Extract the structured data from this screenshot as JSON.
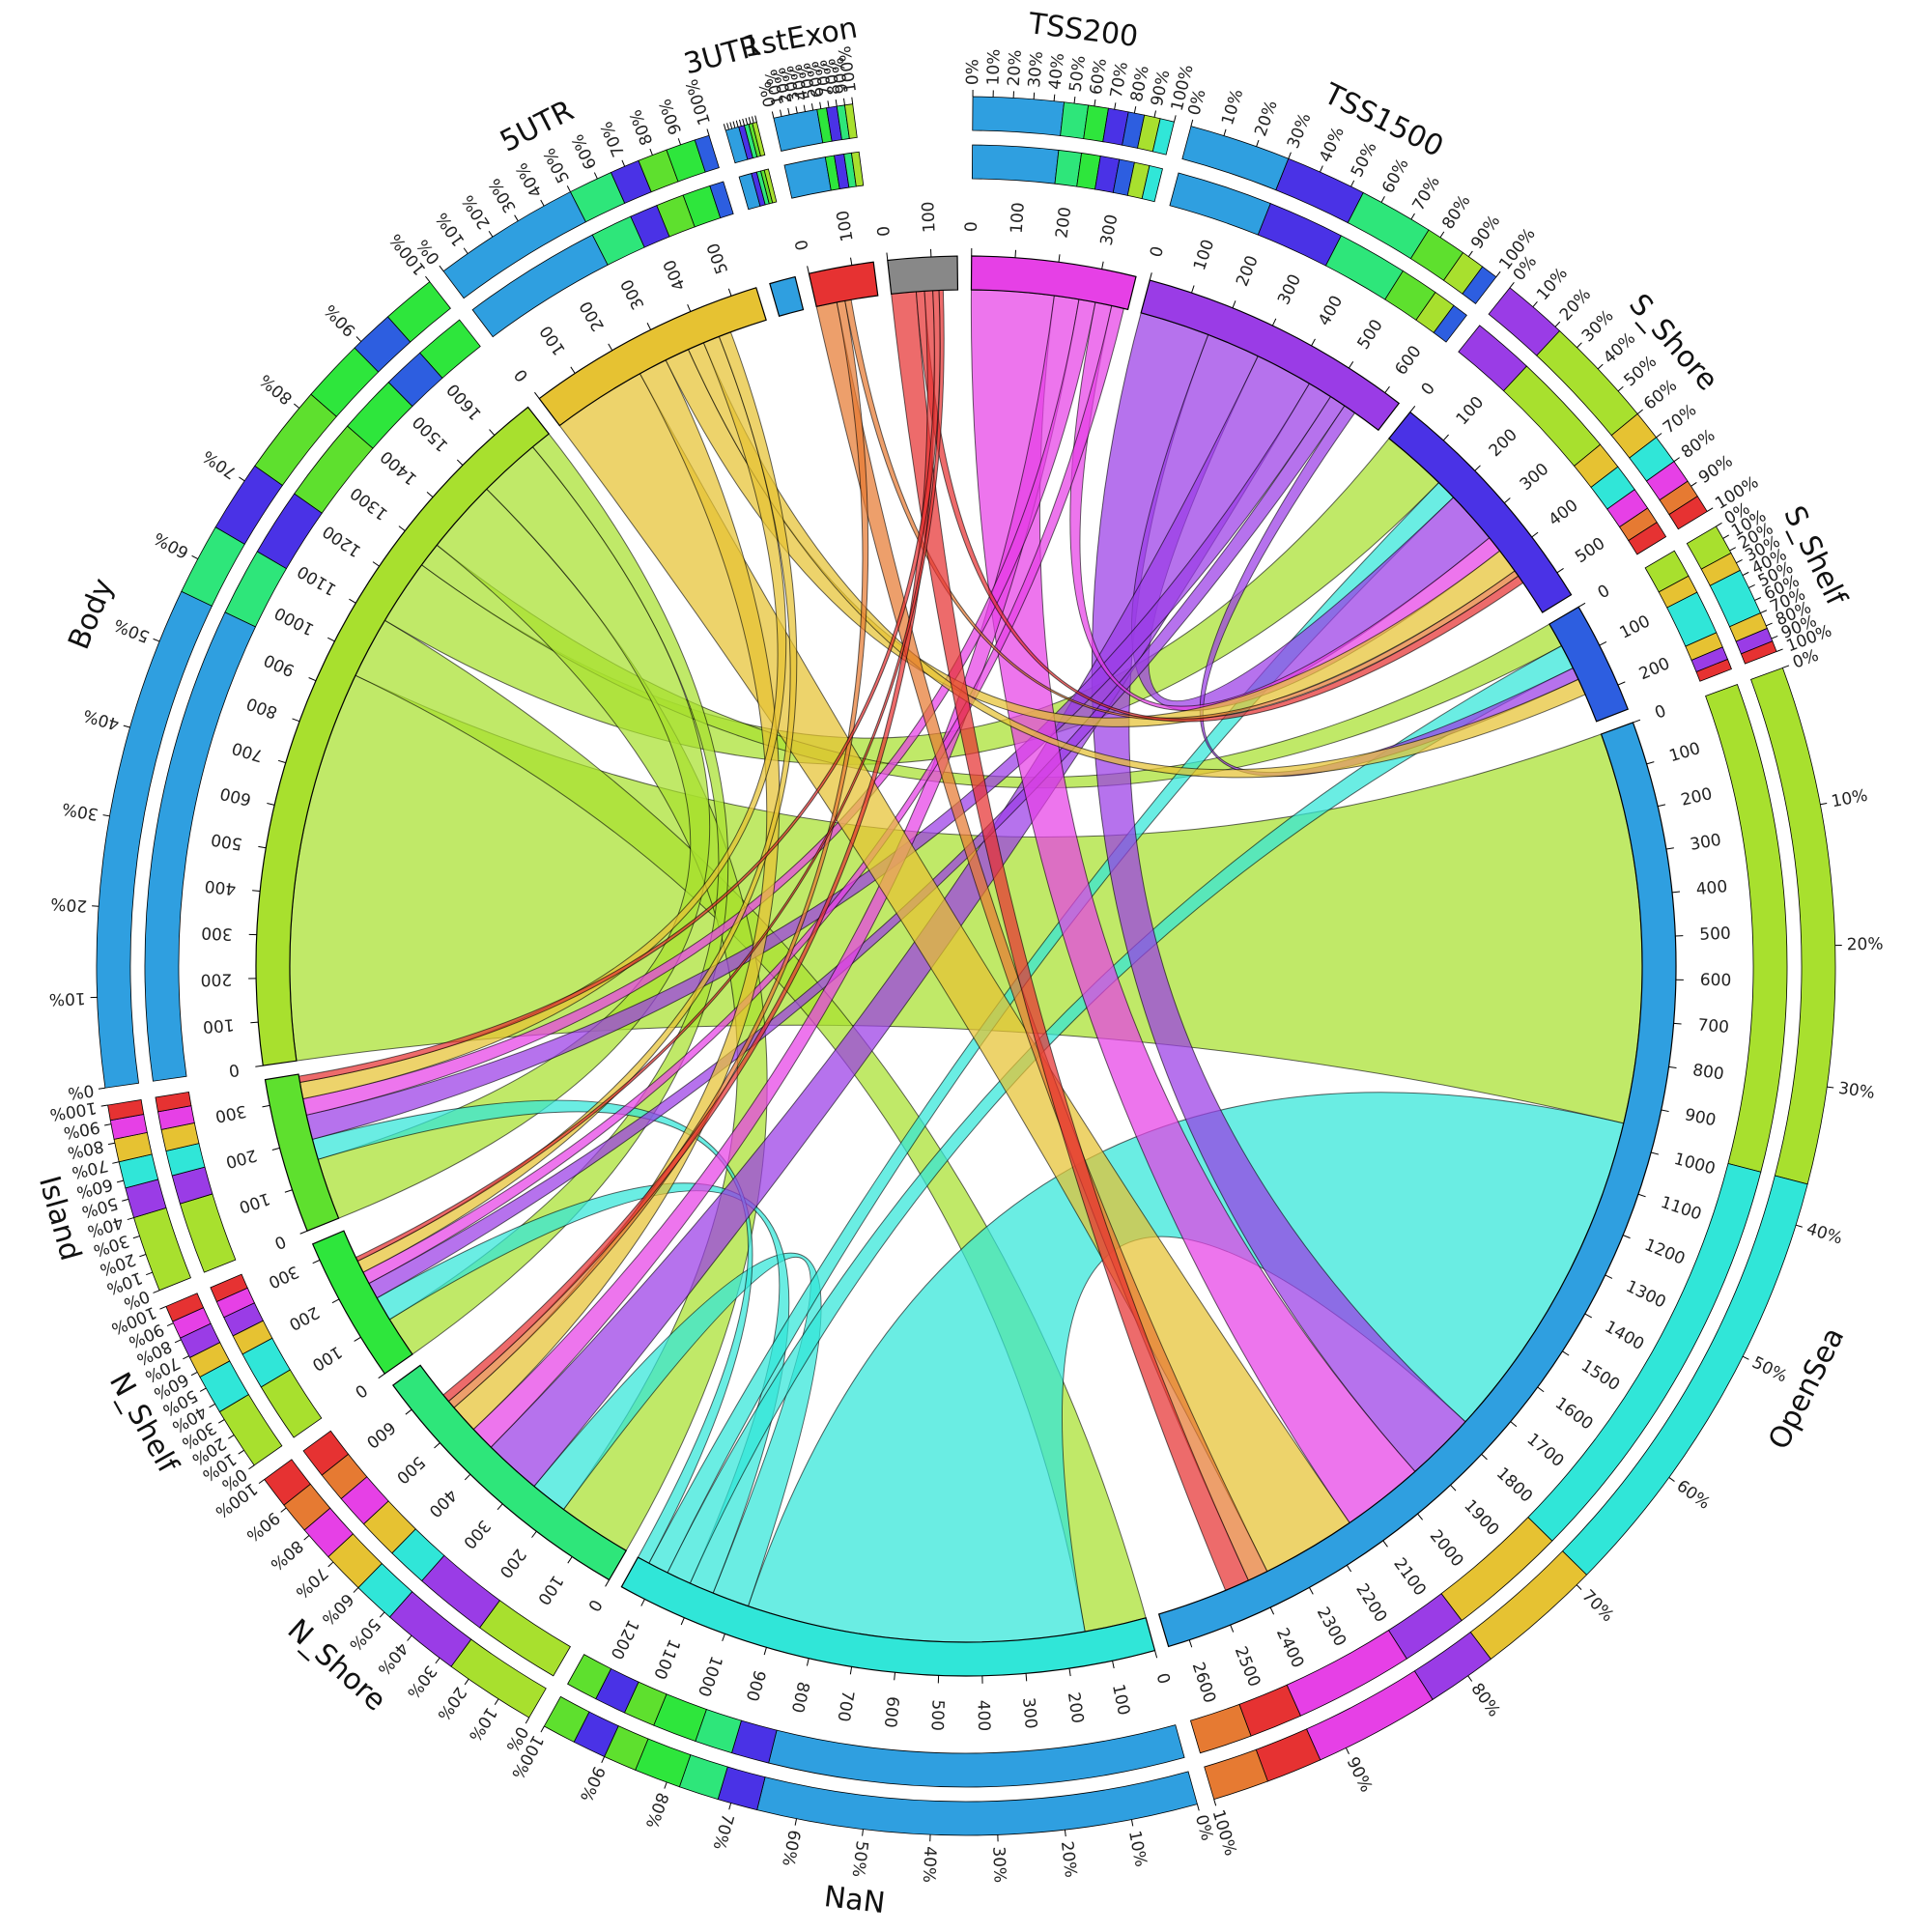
{
  "chart_data": {
    "type": "chord",
    "title": "",
    "colors": {
      "3UTR": "#2f9fe0",
      "1stExon": "#e63232",
      "TSS200": "#e640e6",
      "TSS1500": "#9a3ce6",
      "S_Shore": "#4a32e6",
      "S_Shelf": "#2d5ee0",
      "OpenSea": "#2f9fe0",
      "NaN": "#30e6d8",
      "N_Shore": "#2ee67a",
      "N_Shelf": "#2ee63c",
      "Island": "#5ee02e",
      "Body": "#a8e02e",
      "5UTR": "#e6c232"
    },
    "segments": [
      {
        "name": "3UTR",
        "label": "3UTR",
        "total": 60,
        "start": 57,
        "ticks": [],
        "bar": [
          {
            "f": 0.42,
            "c": "#2f9fe0"
          },
          {
            "f": 0.18,
            "c": "#4a32e6"
          },
          {
            "f": 0.14,
            "c": "#2ee67a"
          },
          {
            "f": 0.12,
            "c": "#5ee02e"
          },
          {
            "f": 0.14,
            "c": "#a8e02e"
          }
        ]
      },
      {
        "name": "1stExon",
        "label": "1stExon",
        "total": 150,
        "start": 60,
        "ticks": [
          "0",
          "100"
        ],
        "bar": [
          {
            "f": 0.55,
            "c": "#2f9fe0"
          },
          {
            "f": 0.12,
            "c": "#2ee63c"
          },
          {
            "f": 0.13,
            "c": "#4a32e6"
          },
          {
            "f": 0.1,
            "c": "#2ee67a"
          },
          {
            "f": 0.1,
            "c": "#a8e02e"
          }
        ]
      },
      {
        "name": "1stExon_b",
        "label": "1stExon",
        "total": 160,
        "start": 0,
        "ticks": [
          "0",
          "100"
        ],
        "bar": []
      },
      {
        "name": "TSS200",
        "label": "TSS200",
        "total": 380,
        "start": 0,
        "ticks": [
          "0",
          "100",
          "200",
          "300"
        ],
        "bar": [
          {
            "f": 0.45,
            "c": "#2f9fe0"
          },
          {
            "f": 0.12,
            "c": "#2ee67a"
          },
          {
            "f": 0.1,
            "c": "#2ee63c"
          },
          {
            "f": 0.1,
            "c": "#4a32e6"
          },
          {
            "f": 0.08,
            "c": "#2d5ee0"
          },
          {
            "f": 0.08,
            "c": "#a8e02e"
          },
          {
            "f": 0.07,
            "c": "#30e6d8"
          }
        ]
      },
      {
        "name": "TSS1500",
        "label": "TSS1500",
        "total": 640,
        "start": 0,
        "ticks": [
          "0",
          "100",
          "200",
          "300",
          "400",
          "500",
          "600"
        ],
        "bar": [
          {
            "f": 0.3,
            "c": "#2f9fe0"
          },
          {
            "f": 0.24,
            "c": "#4a32e6"
          },
          {
            "f": 0.22,
            "c": "#2ee67a"
          },
          {
            "f": 0.12,
            "c": "#5ee02e"
          },
          {
            "f": 0.07,
            "c": "#a8e02e"
          },
          {
            "f": 0.05,
            "c": "#2d5ee0"
          }
        ]
      },
      {
        "name": "S_Shore",
        "label": "S_Shore",
        "total": 560,
        "start": 0,
        "ticks": [
          "0",
          "100",
          "200",
          "300",
          "400",
          "500"
        ],
        "bar": [
          {
            "f": 0.22,
            "c": "#9a3ce6"
          },
          {
            "f": 0.38,
            "c": "#a8e02e"
          },
          {
            "f": 0.1,
            "c": "#e6c232"
          },
          {
            "f": 0.1,
            "c": "#30e6d8"
          },
          {
            "f": 0.08,
            "c": "#e640e6"
          },
          {
            "f": 0.06,
            "c": "#e67a32"
          },
          {
            "f": 0.06,
            "c": "#e63232"
          }
        ]
      },
      {
        "name": "S_Shelf",
        "label": "S_Shelf",
        "total": 260,
        "start": 0,
        "ticks": [
          "0",
          "100",
          "200"
        ],
        "bar": [
          {
            "f": 0.22,
            "c": "#a8e02e"
          },
          {
            "f": 0.14,
            "c": "#e6c232"
          },
          {
            "f": 0.34,
            "c": "#30e6d8"
          },
          {
            "f": 0.12,
            "c": "#e6c232"
          },
          {
            "f": 0.1,
            "c": "#9a3ce6"
          },
          {
            "f": 0.08,
            "c": "#e63232"
          }
        ]
      },
      {
        "name": "OpenSea",
        "label": "OpenSea",
        "total": 2650,
        "start": 0,
        "ticks": [
          "0",
          "100",
          "200",
          "300",
          "400",
          "500",
          "600",
          "700",
          "800",
          "900",
          "1000",
          "1100",
          "1200",
          "1300",
          "1400",
          "1500",
          "1600",
          "1700",
          "1800",
          "1900",
          "2000",
          "2100",
          "2200",
          "2300",
          "2400",
          "2500",
          "2600"
        ],
        "bar": [
          {
            "f": 0.37,
            "c": "#a8e02e"
          },
          {
            "f": 0.32,
            "c": "#30e6d8"
          },
          {
            "f": 0.09,
            "c": "#e6c232"
          },
          {
            "f": 0.05,
            "c": "#9a3ce6"
          },
          {
            "f": 0.09,
            "c": "#e640e6"
          },
          {
            "f": 0.04,
            "c": "#e63232"
          },
          {
            "f": 0.04,
            "c": "#e67a32"
          }
        ]
      },
      {
        "name": "NaN",
        "label": "NaN",
        "total": 1260,
        "start": 0,
        "ticks": [
          "0",
          "100",
          "200",
          "300",
          "400",
          "500",
          "600",
          "700",
          "800",
          "900",
          "1000",
          "1100",
          "1200"
        ],
        "bar": [
          {
            "f": 0.66,
            "c": "#2f9fe0"
          },
          {
            "f": 0.06,
            "c": "#4a32e6"
          },
          {
            "f": 0.06,
            "c": "#2ee67a"
          },
          {
            "f": 0.07,
            "c": "#2ee63c"
          },
          {
            "f": 0.05,
            "c": "#5ee02e"
          },
          {
            "f": 0.05,
            "c": "#4a32e6"
          },
          {
            "f": 0.05,
            "c": "#5ee02e"
          }
        ]
      },
      {
        "name": "N_Shore",
        "label": "N_Shore",
        "total": 670,
        "start": 0,
        "ticks": [
          "0",
          "100",
          "200",
          "300",
          "400",
          "500",
          "600"
        ],
        "bar": [
          {
            "f": 0.26,
            "c": "#a8e02e"
          },
          {
            "f": 0.22,
            "c": "#9a3ce6"
          },
          {
            "f": 0.12,
            "c": "#30e6d8"
          },
          {
            "f": 0.12,
            "c": "#e6c232"
          },
          {
            "f": 0.1,
            "c": "#e640e6"
          },
          {
            "f": 0.09,
            "c": "#e67a32"
          },
          {
            "f": 0.09,
            "c": "#e63232"
          }
        ]
      },
      {
        "name": "N_Shelf",
        "label": "N_Shelf",
        "total": 340,
        "start": 0,
        "ticks": [
          "0",
          "100",
          "200",
          "300"
        ],
        "bar": [
          {
            "f": 0.35,
            "c": "#a8e02e"
          },
          {
            "f": 0.22,
            "c": "#30e6d8"
          },
          {
            "f": 0.12,
            "c": "#e6c232"
          },
          {
            "f": 0.12,
            "c": "#9a3ce6"
          },
          {
            "f": 0.1,
            "c": "#e640e6"
          },
          {
            "f": 0.09,
            "c": "#e63232"
          }
        ]
      },
      {
        "name": "Island",
        "label": "Island",
        "total": 360,
        "start": 0,
        "ticks": [
          "0",
          "100",
          "200",
          "300"
        ],
        "bar": [
          {
            "f": 0.4,
            "c": "#a8e02e"
          },
          {
            "f": 0.16,
            "c": "#9a3ce6"
          },
          {
            "f": 0.14,
            "c": "#30e6d8"
          },
          {
            "f": 0.12,
            "c": "#e6c232"
          },
          {
            "f": 0.1,
            "c": "#e640e6"
          },
          {
            "f": 0.08,
            "c": "#e63232"
          }
        ]
      },
      {
        "name": "Body",
        "label": "Body",
        "total": 1700,
        "start": 0,
        "ticks": [
          "0",
          "100",
          "200",
          "300",
          "400",
          "500",
          "600",
          "700",
          "800",
          "900",
          "1000",
          "1100",
          "1200",
          "1300",
          "1400",
          "1500",
          "1600"
        ],
        "bar": [
          {
            "f": 0.56,
            "c": "#2f9fe0"
          },
          {
            "f": 0.08,
            "c": "#2ee67a"
          },
          {
            "f": 0.08,
            "c": "#4a32e6"
          },
          {
            "f": 0.1,
            "c": "#5ee02e"
          },
          {
            "f": 0.07,
            "c": "#2ee63c"
          },
          {
            "f": 0.05,
            "c": "#2d5ee0"
          },
          {
            "f": 0.06,
            "c": "#2ee63c"
          }
        ]
      },
      {
        "name": "5UTR",
        "label": "5UTR",
        "total": 560,
        "start": 0,
        "ticks": [
          "0",
          "100",
          "200",
          "300",
          "400",
          "500"
        ],
        "bar": [
          {
            "f": 0.5,
            "c": "#2f9fe0"
          },
          {
            "f": 0.15,
            "c": "#2ee67a"
          },
          {
            "f": 0.1,
            "c": "#4a32e6"
          },
          {
            "f": 0.1,
            "c": "#5ee02e"
          },
          {
            "f": 0.1,
            "c": "#2ee63c"
          },
          {
            "f": 0.05,
            "c": "#2d5ee0"
          }
        ]
      }
    ],
    "pct_ticks": [
      "0%",
      "10%",
      "20%",
      "30%",
      "40%",
      "50%",
      "60%",
      "70%",
      "80%",
      "90%",
      "100%"
    ],
    "links": [
      {
        "from": "Body",
        "to": "OpenSea",
        "value": 950,
        "color": "#a8e02e"
      },
      {
        "from": "Body",
        "to": "NaN",
        "value": 150,
        "color": "#a8e02e"
      },
      {
        "from": "Body",
        "to": "S_Shore",
        "value": 160,
        "color": "#a8e02e"
      },
      {
        "from": "Body",
        "to": "S_Shelf",
        "value": 60,
        "color": "#a8e02e"
      },
      {
        "from": "Body",
        "to": "N_Shore",
        "value": 180,
        "color": "#a8e02e"
      },
      {
        "from": "Body",
        "to": "Island",
        "value": 150,
        "color": "#a8e02e"
      },
      {
        "from": "Body",
        "to": "N_Shelf",
        "value": 100,
        "color": "#a8e02e"
      },
      {
        "from": "NaN",
        "to": "OpenSea",
        "value": 820,
        "color": "#30e6d8"
      },
      {
        "from": "NaN",
        "to": "N_Shore",
        "value": 90,
        "color": "#30e6d8"
      },
      {
        "from": "NaN",
        "to": "N_Shelf",
        "value": 60,
        "color": "#30e6d8"
      },
      {
        "from": "NaN",
        "to": "S_Shelf",
        "value": 60,
        "color": "#30e6d8"
      },
      {
        "from": "NaN",
        "to": "S_Shore",
        "value": 50,
        "color": "#30e6d8"
      },
      {
        "from": "NaN",
        "to": "Island",
        "value": 50,
        "color": "#30e6d8"
      },
      {
        "from": "TSS1500",
        "to": "OpenSea",
        "value": 170,
        "color": "#9a3ce6"
      },
      {
        "from": "TSS1500",
        "to": "S_Shore",
        "value": 130,
        "color": "#9a3ce6"
      },
      {
        "from": "TSS1500",
        "to": "N_Shore",
        "value": 140,
        "color": "#9a3ce6"
      },
      {
        "from": "TSS1500",
        "to": "Island",
        "value": 60,
        "color": "#9a3ce6"
      },
      {
        "from": "TSS1500",
        "to": "N_Shelf",
        "value": 40,
        "color": "#9a3ce6"
      },
      {
        "from": "TSS1500",
        "to": "S_Shelf",
        "value": 30,
        "color": "#9a3ce6"
      },
      {
        "from": "TSS200",
        "to": "OpenSea",
        "value": 200,
        "color": "#e640e6"
      },
      {
        "from": "TSS200",
        "to": "N_Shore",
        "value": 60,
        "color": "#e640e6"
      },
      {
        "from": "TSS200",
        "to": "Island",
        "value": 40,
        "color": "#e640e6"
      },
      {
        "from": "TSS200",
        "to": "S_Shore",
        "value": 40,
        "color": "#e640e6"
      },
      {
        "from": "TSS200",
        "to": "N_Shelf",
        "value": 30,
        "color": "#e640e6"
      },
      {
        "from": "5UTR",
        "to": "OpenSea",
        "value": 230,
        "color": "#e6c232"
      },
      {
        "from": "5UTR",
        "to": "N_Shore",
        "value": 70,
        "color": "#e6c232"
      },
      {
        "from": "5UTR",
        "to": "S_Shore",
        "value": 60,
        "color": "#e6c232"
      },
      {
        "from": "5UTR",
        "to": "S_Shelf",
        "value": 40,
        "color": "#e6c232"
      },
      {
        "from": "5UTR",
        "to": "Island",
        "value": 40,
        "color": "#e6c232"
      },
      {
        "from": "5UTR",
        "to": "N_Shelf",
        "value": 30,
        "color": "#e6c232"
      },
      {
        "from": "1stExon",
        "to": "OpenSea",
        "value": 50,
        "color": "#e67a32"
      },
      {
        "from": "1stExon",
        "to": "N_Shore",
        "value": 20,
        "color": "#e67a32"
      },
      {
        "from": "1stExon",
        "to": "S_Shore",
        "value": 15,
        "color": "#e67a32"
      },
      {
        "from": "1stExon_b",
        "to": "OpenSea",
        "value": 60,
        "color": "#e63232"
      },
      {
        "from": "1stExon_b",
        "to": "S_Shore",
        "value": 20,
        "color": "#e63232"
      },
      {
        "from": "1stExon_b",
        "to": "N_Shore",
        "value": 20,
        "color": "#e63232"
      },
      {
        "from": "1stExon_b",
        "to": "Island",
        "value": 15,
        "color": "#e63232"
      },
      {
        "from": "1stExon_b",
        "to": "N_Shelf",
        "value": 10,
        "color": "#e63232"
      }
    ]
  }
}
